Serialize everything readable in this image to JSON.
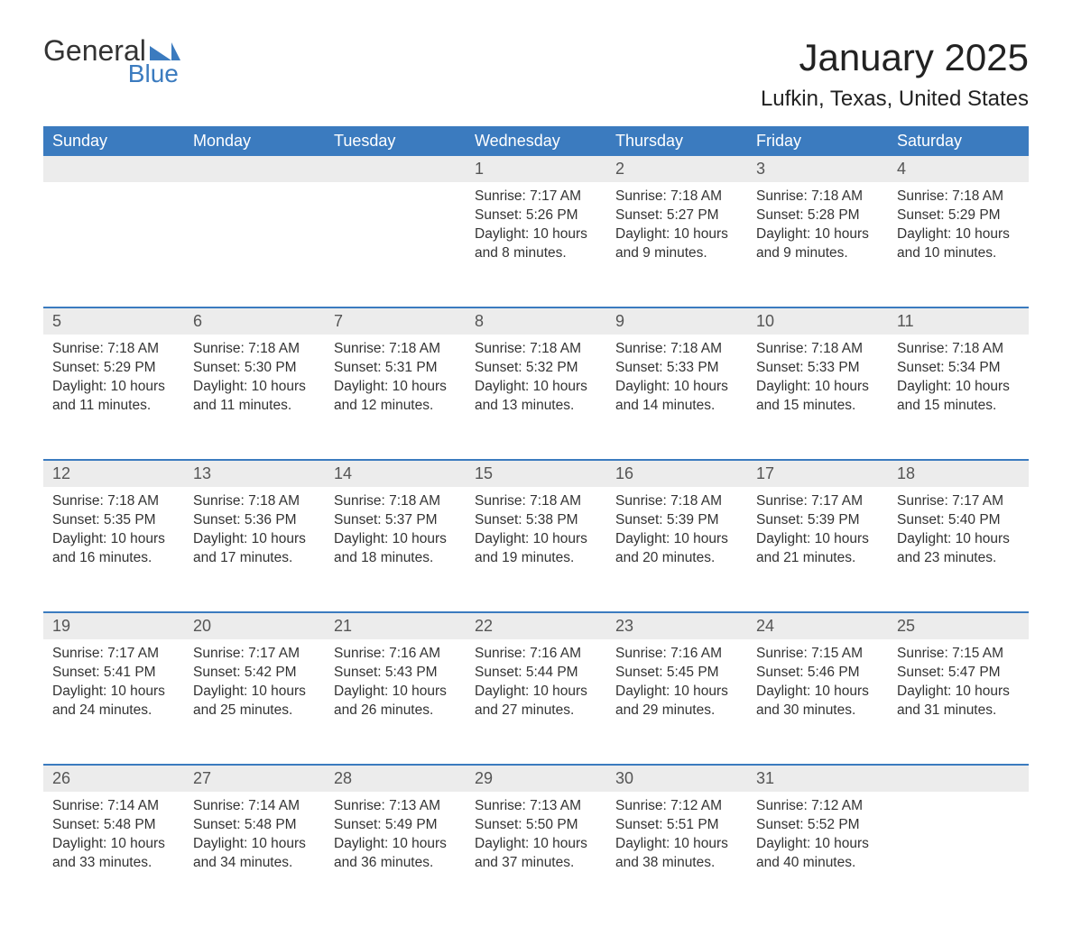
{
  "logo": {
    "text_top": "General",
    "text_bottom": "Blue",
    "accent_color": "#3b7bbf"
  },
  "title": "January 2025",
  "location": "Lufkin, Texas, United States",
  "colors": {
    "header_bg": "#3b7bbf",
    "header_text": "#ffffff",
    "daynum_bg": "#ececec",
    "body_text": "#333333",
    "rule": "#3b7bbf"
  },
  "day_names": [
    "Sunday",
    "Monday",
    "Tuesday",
    "Wednesday",
    "Thursday",
    "Friday",
    "Saturday"
  ],
  "weeks": [
    [
      null,
      null,
      null,
      {
        "n": "1",
        "sunrise": "7:17 AM",
        "sunset": "5:26 PM",
        "daylight": "10 hours and 8 minutes."
      },
      {
        "n": "2",
        "sunrise": "7:18 AM",
        "sunset": "5:27 PM",
        "daylight": "10 hours and 9 minutes."
      },
      {
        "n": "3",
        "sunrise": "7:18 AM",
        "sunset": "5:28 PM",
        "daylight": "10 hours and 9 minutes."
      },
      {
        "n": "4",
        "sunrise": "7:18 AM",
        "sunset": "5:29 PM",
        "daylight": "10 hours and 10 minutes."
      }
    ],
    [
      {
        "n": "5",
        "sunrise": "7:18 AM",
        "sunset": "5:29 PM",
        "daylight": "10 hours and 11 minutes."
      },
      {
        "n": "6",
        "sunrise": "7:18 AM",
        "sunset": "5:30 PM",
        "daylight": "10 hours and 11 minutes."
      },
      {
        "n": "7",
        "sunrise": "7:18 AM",
        "sunset": "5:31 PM",
        "daylight": "10 hours and 12 minutes."
      },
      {
        "n": "8",
        "sunrise": "7:18 AM",
        "sunset": "5:32 PM",
        "daylight": "10 hours and 13 minutes."
      },
      {
        "n": "9",
        "sunrise": "7:18 AM",
        "sunset": "5:33 PM",
        "daylight": "10 hours and 14 minutes."
      },
      {
        "n": "10",
        "sunrise": "7:18 AM",
        "sunset": "5:33 PM",
        "daylight": "10 hours and 15 minutes."
      },
      {
        "n": "11",
        "sunrise": "7:18 AM",
        "sunset": "5:34 PM",
        "daylight": "10 hours and 15 minutes."
      }
    ],
    [
      {
        "n": "12",
        "sunrise": "7:18 AM",
        "sunset": "5:35 PM",
        "daylight": "10 hours and 16 minutes."
      },
      {
        "n": "13",
        "sunrise": "7:18 AM",
        "sunset": "5:36 PM",
        "daylight": "10 hours and 17 minutes."
      },
      {
        "n": "14",
        "sunrise": "7:18 AM",
        "sunset": "5:37 PM",
        "daylight": "10 hours and 18 minutes."
      },
      {
        "n": "15",
        "sunrise": "7:18 AM",
        "sunset": "5:38 PM",
        "daylight": "10 hours and 19 minutes."
      },
      {
        "n": "16",
        "sunrise": "7:18 AM",
        "sunset": "5:39 PM",
        "daylight": "10 hours and 20 minutes."
      },
      {
        "n": "17",
        "sunrise": "7:17 AM",
        "sunset": "5:39 PM",
        "daylight": "10 hours and 21 minutes."
      },
      {
        "n": "18",
        "sunrise": "7:17 AM",
        "sunset": "5:40 PM",
        "daylight": "10 hours and 23 minutes."
      }
    ],
    [
      {
        "n": "19",
        "sunrise": "7:17 AM",
        "sunset": "5:41 PM",
        "daylight": "10 hours and 24 minutes."
      },
      {
        "n": "20",
        "sunrise": "7:17 AM",
        "sunset": "5:42 PM",
        "daylight": "10 hours and 25 minutes."
      },
      {
        "n": "21",
        "sunrise": "7:16 AM",
        "sunset": "5:43 PM",
        "daylight": "10 hours and 26 minutes."
      },
      {
        "n": "22",
        "sunrise": "7:16 AM",
        "sunset": "5:44 PM",
        "daylight": "10 hours and 27 minutes."
      },
      {
        "n": "23",
        "sunrise": "7:16 AM",
        "sunset": "5:45 PM",
        "daylight": "10 hours and 29 minutes."
      },
      {
        "n": "24",
        "sunrise": "7:15 AM",
        "sunset": "5:46 PM",
        "daylight": "10 hours and 30 minutes."
      },
      {
        "n": "25",
        "sunrise": "7:15 AM",
        "sunset": "5:47 PM",
        "daylight": "10 hours and 31 minutes."
      }
    ],
    [
      {
        "n": "26",
        "sunrise": "7:14 AM",
        "sunset": "5:48 PM",
        "daylight": "10 hours and 33 minutes."
      },
      {
        "n": "27",
        "sunrise": "7:14 AM",
        "sunset": "5:48 PM",
        "daylight": "10 hours and 34 minutes."
      },
      {
        "n": "28",
        "sunrise": "7:13 AM",
        "sunset": "5:49 PM",
        "daylight": "10 hours and 36 minutes."
      },
      {
        "n": "29",
        "sunrise": "7:13 AM",
        "sunset": "5:50 PM",
        "daylight": "10 hours and 37 minutes."
      },
      {
        "n": "30",
        "sunrise": "7:12 AM",
        "sunset": "5:51 PM",
        "daylight": "10 hours and 38 minutes."
      },
      {
        "n": "31",
        "sunrise": "7:12 AM",
        "sunset": "5:52 PM",
        "daylight": "10 hours and 40 minutes."
      },
      null
    ]
  ],
  "labels": {
    "sunrise": "Sunrise: ",
    "sunset": "Sunset: ",
    "daylight": "Daylight: "
  }
}
